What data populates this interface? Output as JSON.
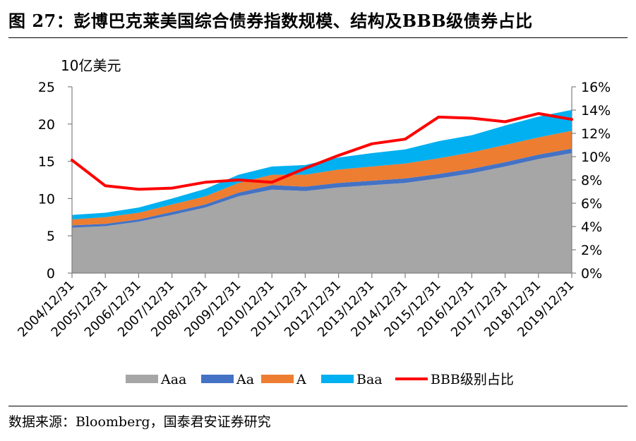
{
  "figure": {
    "title": "图 27：彭博巴克莱美国综合债券指数规模、结构及BBB级债券占比",
    "source": "数据来源：Bloomberg，国泰君安证券研究"
  },
  "colors": {
    "Aaa": "#a6a6a6",
    "Aa": "#4472c4",
    "A": "#ed7d31",
    "Baa": "#00b0f0",
    "BBB级别占比": "#ff0000",
    "axis": "#808080"
  },
  "chart_data": {
    "type": "area",
    "y_unit_label": "10亿美元",
    "ylim": [
      0,
      25
    ],
    "y_ticks": [
      "0",
      "5",
      "10",
      "15",
      "20",
      "25"
    ],
    "y2lim": [
      0,
      0.16
    ],
    "y2_ticks": [
      "0%",
      "2%",
      "4%",
      "6%",
      "8%",
      "10%",
      "12%",
      "14%",
      "16%"
    ],
    "grid": false,
    "legend_position": "bottom",
    "categories": [
      "2004/12/31",
      "2005/12/31",
      "2006/12/31",
      "2007/12/31",
      "2008/12/31",
      "2009/12/31",
      "2010/12/31",
      "2011/12/31",
      "2012/12/31",
      "2013/12/31",
      "2014/12/31",
      "2015/12/31",
      "2016/12/31",
      "2017/12/31",
      "2018/12/31",
      "2019/12/31"
    ],
    "series": [
      {
        "name": "Aaa",
        "type": "stacked-area",
        "axis": "left",
        "values": [
          6.1,
          6.3,
          6.9,
          7.8,
          8.8,
          10.3,
          11.2,
          11.0,
          11.5,
          11.8,
          12.1,
          12.7,
          13.4,
          14.3,
          15.3,
          16.1
        ]
      },
      {
        "name": "Aa",
        "type": "stacked-area",
        "axis": "left",
        "values": [
          0.3,
          0.3,
          0.3,
          0.4,
          0.4,
          0.5,
          0.6,
          0.6,
          0.6,
          0.6,
          0.6,
          0.6,
          0.6,
          0.6,
          0.6,
          0.6
        ]
      },
      {
        "name": "A",
        "type": "stacked-area",
        "axis": "left",
        "values": [
          0.8,
          0.9,
          0.9,
          1.0,
          1.1,
          1.3,
          1.4,
          1.6,
          1.8,
          1.9,
          2.0,
          2.1,
          2.2,
          2.3,
          2.3,
          2.4
        ]
      },
      {
        "name": "Baa",
        "type": "stacked-area",
        "axis": "left",
        "values": [
          0.6,
          0.6,
          0.7,
          0.8,
          1.0,
          1.1,
          1.1,
          1.3,
          1.6,
          1.8,
          1.9,
          2.3,
          2.3,
          2.6,
          2.8,
          2.8
        ]
      },
      {
        "name": "BBB级别占比",
        "type": "line",
        "axis": "right",
        "values": [
          0.097,
          0.075,
          0.072,
          0.073,
          0.078,
          0.08,
          0.078,
          0.09,
          0.101,
          0.111,
          0.115,
          0.134,
          0.133,
          0.13,
          0.137,
          0.132
        ]
      }
    ]
  }
}
